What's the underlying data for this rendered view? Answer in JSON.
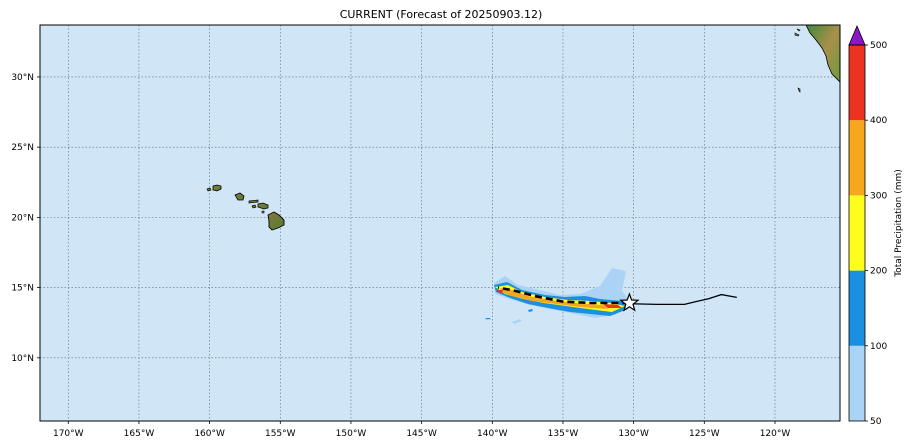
{
  "title": "CURRENT (Forecast of 20250903.12)",
  "map": {
    "lon_range": [
      -172,
      -115.4
    ],
    "lat_range": [
      5.5,
      33.7
    ],
    "lon_ticks": [
      {
        "value": -170,
        "label": "170°W"
      },
      {
        "value": -165,
        "label": "165°W"
      },
      {
        "value": -160,
        "label": "160°W"
      },
      {
        "value": -155,
        "label": "155°W"
      },
      {
        "value": -150,
        "label": "150°W"
      },
      {
        "value": -145,
        "label": "145°W"
      },
      {
        "value": -140,
        "label": "140°W"
      },
      {
        "value": -135,
        "label": "135°W"
      },
      {
        "value": -130,
        "label": "130°W"
      },
      {
        "value": -125,
        "label": "125°W"
      },
      {
        "value": -120,
        "label": "120°W"
      }
    ],
    "lat_ticks": [
      {
        "value": 30,
        "label": "30°N"
      },
      {
        "value": 25,
        "label": "25°N"
      },
      {
        "value": 20,
        "label": "20°N"
      },
      {
        "value": 15,
        "label": "15°N"
      },
      {
        "value": 10,
        "label": "10°N"
      }
    ],
    "ocean_color": "#d0e6f6",
    "grid": true,
    "grid_style": "dotted",
    "islands": [
      "hawaii-island",
      "maui",
      "oahu",
      "kauai",
      "molokai"
    ],
    "storm_marker": "star-icon",
    "storm_position": {
      "lon": -130.3,
      "lat": 13.9
    }
  },
  "colorbar": {
    "label": "Total Precipitation (mm)",
    "ticks": [
      "50",
      "100",
      "200",
      "300",
      "400",
      "500"
    ],
    "colors": [
      "#aad3f5",
      "#1b90e0",
      "#fefe1e",
      "#f7a71e",
      "#ee3220"
    ],
    "extend_max_color": "#8b18c8"
  },
  "chart_data": {
    "type": "map",
    "title": "CURRENT (Forecast of 20250903.12)",
    "observed_track": [
      {
        "lon": -122.7,
        "lat": 14.3
      },
      {
        "lon": -123.8,
        "lat": 14.5
      },
      {
        "lon": -124.7,
        "lat": 14.2
      },
      {
        "lon": -125.6,
        "lat": 14.0
      },
      {
        "lon": -126.4,
        "lat": 13.8
      },
      {
        "lon": -128.3,
        "lat": 13.8
      },
      {
        "lon": -130.3,
        "lat": 13.85
      }
    ],
    "forecast_track": [
      {
        "lon": -130.3,
        "lat": 13.9
      },
      {
        "lon": -133.0,
        "lat": 13.9
      },
      {
        "lon": -135.0,
        "lat": 14.0
      },
      {
        "lon": -137.0,
        "lat": 14.4
      },
      {
        "lon": -138.5,
        "lat": 14.8
      },
      {
        "lon": -139.6,
        "lat": 15.0
      }
    ],
    "precip_levels_mm": [
      50,
      100,
      200,
      300,
      400,
      500
    ]
  }
}
